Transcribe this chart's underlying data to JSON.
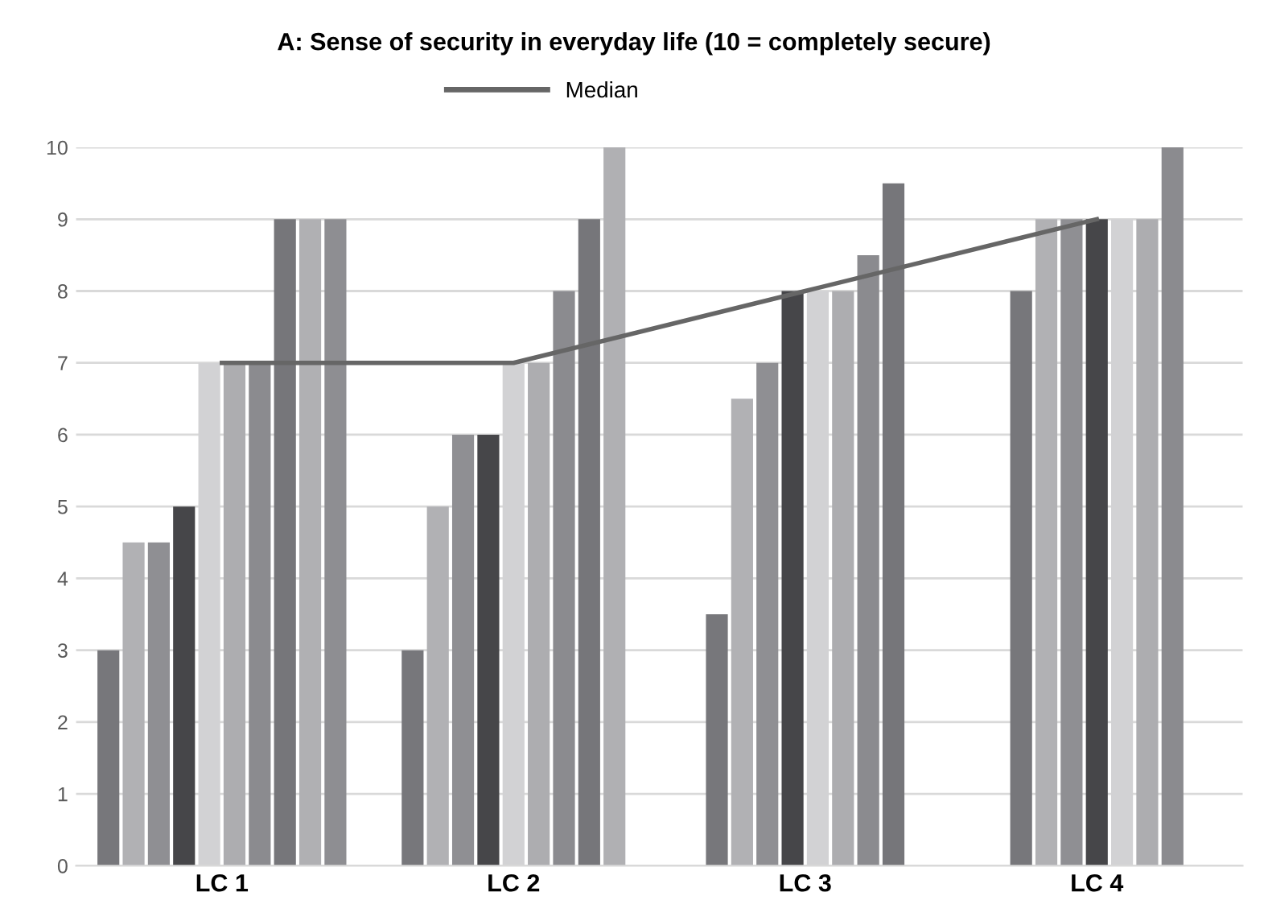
{
  "chart_data": {
    "type": "bar",
    "title": "A: Sense of security in everyday life (10 = completely secure)",
    "categories": [
      "LC 1",
      "LC 2",
      "LC 3",
      "LC 4"
    ],
    "series": [
      {
        "color": "#77777b",
        "values": [
          3,
          3,
          3.5,
          8
        ]
      },
      {
        "color": "#b1b1b4",
        "values": [
          4.5,
          5,
          6.5,
          9
        ]
      },
      {
        "color": "#8f8f93",
        "values": [
          4.5,
          6,
          7,
          9
        ]
      },
      {
        "color": "#464649",
        "values": [
          5,
          6,
          8,
          9
        ]
      },
      {
        "color": "#d2d2d4",
        "values": [
          7,
          7,
          8,
          9
        ]
      },
      {
        "color": "#adadb0",
        "values": [
          7,
          7,
          8,
          9
        ]
      },
      {
        "color": "#8b8b8f",
        "values": [
          7,
          8,
          8.5,
          10
        ]
      },
      {
        "color": "#76767a",
        "values": [
          9,
          9,
          9.5,
          null
        ]
      },
      {
        "color": "#b0b0b3",
        "values": [
          9,
          10,
          null,
          null
        ]
      },
      {
        "color": "#8e8e92",
        "values": [
          9,
          null,
          null,
          null
        ]
      },
      {
        "type": "line",
        "name": "Median",
        "color": "#666666",
        "values": [
          7,
          7,
          8,
          9
        ]
      }
    ],
    "ylim": [
      0,
      10
    ],
    "yticks": [
      0,
      1,
      2,
      3,
      4,
      5,
      6,
      7,
      8,
      9,
      10
    ],
    "grid": "y",
    "legend": "top",
    "marker": "none",
    "line_style": "solid"
  }
}
